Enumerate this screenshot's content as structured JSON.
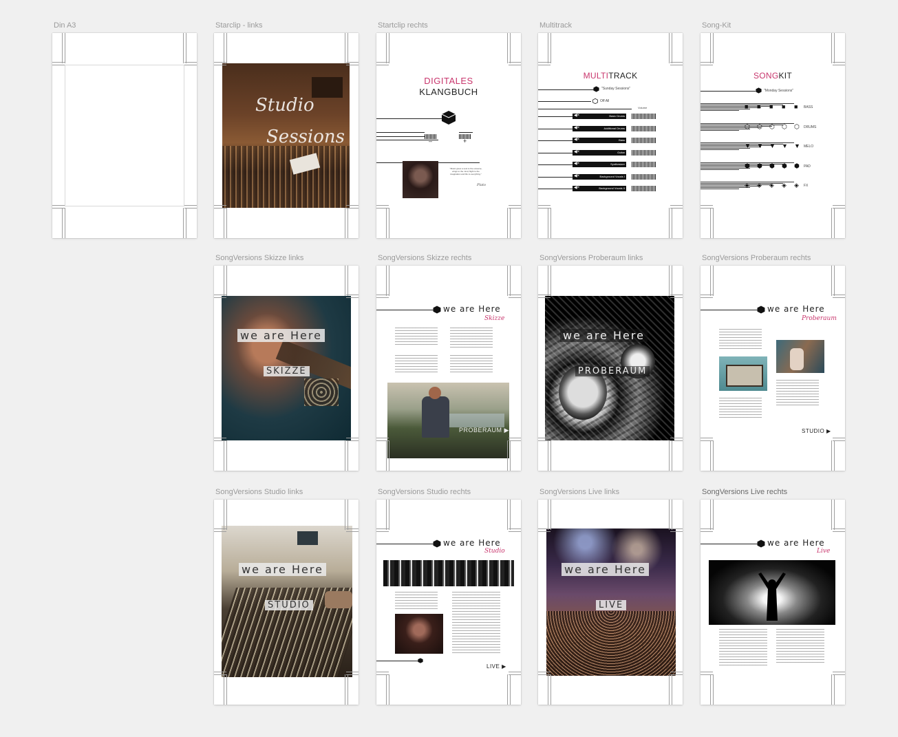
{
  "artboards": [
    {
      "title": "Din A3"
    },
    {
      "title": "Starclip - links"
    },
    {
      "title": "Startclip rechts"
    },
    {
      "title": "Multitrack"
    },
    {
      "title": "Song-Kit"
    },
    {
      "title": "SongVersions Skizze links"
    },
    {
      "title": "SongVersions Skizze rechts"
    },
    {
      "title": "SongVersions Proberaum links"
    },
    {
      "title": "SongVersions Proberaum rechts"
    },
    {
      "title": "SongVersions Studio links"
    },
    {
      "title": "SongVersions Studio rechts"
    },
    {
      "title": "SongVersions Live links"
    },
    {
      "title": "SongVersions Live rechts"
    }
  ],
  "starclip_links": {
    "script_line1": "Studio",
    "script_line2": "Sessions"
  },
  "startclip_rechts": {
    "title_line1": "DIGITALES",
    "title_line2": "KLANGBUCH",
    "minus": "–",
    "plus": "+",
    "quote": "\"Music gives a soul to the universe, wings to the mind, flight to the imagination and life to everything.\"",
    "quote_author": "Plato"
  },
  "multitrack": {
    "title_a": "MULTI",
    "title_b": "TRACK",
    "session": "\"Sunday Sessions\"",
    "off_all": "Off All",
    "volume": "Volume",
    "tracks": [
      "Basic Drums",
      "Additional Drums",
      "Bass",
      "Guitar",
      "Synthesizer",
      "Background Vocals I",
      "Background Vocals II"
    ]
  },
  "songkit": {
    "title_a": "SONG",
    "title_b": "KIT",
    "session": "\"Monday Sessions\"",
    "rows": [
      "BASS",
      "DRUMS",
      "MELO",
      "PAD",
      "FX"
    ]
  },
  "hero": {
    "we_are_here": "we are Here",
    "skizze": "SKIZZE",
    "proberaum": "PROBERAUM",
    "studio": "STUDIO",
    "live": "LIVE"
  },
  "skizze_rechts": {
    "subtitle": "Skizze",
    "next": "PROBERAUM"
  },
  "proberaum_rechts": {
    "subtitle": "Proberaum",
    "next": "STUDIO"
  },
  "studio_rechts": {
    "subtitle": "Studio",
    "next": "LIVE"
  },
  "live_rechts": {
    "subtitle": "Live"
  },
  "colors": {
    "accent": "#c8356c",
    "canvas": "#f0f0f0"
  }
}
